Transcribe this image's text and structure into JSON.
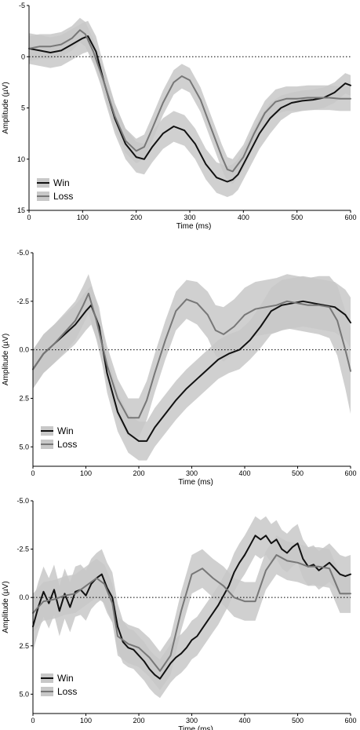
{
  "chart_data": [
    {
      "type": "line",
      "xlabel": "Time (ms)",
      "ylabel": "Amplitude (µV)",
      "xlim": [
        0,
        600
      ],
      "ylim": [
        -5,
        15
      ],
      "y_inverted": true,
      "xticks": [
        "0",
        "100",
        "200",
        "300",
        "400",
        "500",
        "600"
      ],
      "yticks": [
        "-5",
        "0",
        "5",
        "10",
        "15"
      ],
      "legend": "bottom-left",
      "series": [
        {
          "name": "Win",
          "color": "#111111",
          "x": [
            0,
            20,
            40,
            60,
            80,
            100,
            110,
            125,
            140,
            160,
            180,
            200,
            215,
            230,
            250,
            270,
            290,
            310,
            330,
            350,
            370,
            380,
            390,
            410,
            430,
            450,
            470,
            490,
            510,
            530,
            550,
            570,
            590,
            600
          ],
          "y": [
            -0.8,
            -0.6,
            -0.4,
            -0.6,
            -1.2,
            -1.8,
            -2.0,
            -0.5,
            2.5,
            6.0,
            8.5,
            9.8,
            10.0,
            8.8,
            7.5,
            6.8,
            7.2,
            8.5,
            10.5,
            11.8,
            12.2,
            12.0,
            11.5,
            9.5,
            7.5,
            6.0,
            5.0,
            4.5,
            4.3,
            4.2,
            4.0,
            3.5,
            2.6,
            2.8
          ],
          "band": [
            1.5,
            1.5,
            1.5,
            1.5,
            1.5,
            1.5,
            1.5,
            1.5,
            1.5,
            1.5,
            1.5,
            1.5,
            1.5,
            1.5,
            1.5,
            1.5,
            1.5,
            1.5,
            1.5,
            1.5,
            1.5,
            1.5,
            1.5,
            1.5,
            1.5,
            1.5,
            1.2,
            1.0,
            1.0,
            1.0,
            1.0,
            1.0,
            1.0,
            1.0
          ]
        },
        {
          "name": "Loss",
          "color": "#777777",
          "x": [
            0,
            20,
            40,
            60,
            80,
            95,
            105,
            120,
            140,
            160,
            180,
            200,
            215,
            230,
            250,
            270,
            285,
            300,
            320,
            340,
            360,
            370,
            380,
            400,
            420,
            440,
            460,
            480,
            500,
            520,
            540,
            560,
            580,
            600
          ],
          "y": [
            -0.8,
            -1.0,
            -1.0,
            -1.2,
            -1.8,
            -2.6,
            -2.2,
            -0.5,
            2.5,
            5.8,
            8.2,
            9.2,
            8.8,
            7.0,
            4.5,
            2.5,
            1.9,
            2.3,
            4.2,
            7.0,
            9.8,
            11.0,
            11.2,
            9.8,
            7.5,
            5.5,
            4.4,
            4.1,
            4.1,
            4.0,
            4.0,
            4.0,
            4.1,
            4.1
          ],
          "band": [
            1.2,
            1.2,
            1.2,
            1.2,
            1.2,
            1.2,
            1.2,
            1.2,
            1.2,
            1.2,
            1.2,
            1.2,
            1.2,
            1.2,
            1.2,
            1.2,
            1.2,
            1.2,
            1.2,
            1.2,
            1.2,
            1.2,
            1.2,
            1.2,
            1.2,
            1.2,
            1.2,
            1.2,
            1.2,
            1.2,
            1.2,
            1.2,
            1.2,
            1.2
          ]
        }
      ]
    },
    {
      "type": "line",
      "xlabel": "Time (ms)",
      "ylabel": "Amplitude (µV)",
      "xlim": [
        0,
        600
      ],
      "ylim": [
        -5,
        6
      ],
      "y_inverted": true,
      "xticks": [
        "0",
        "100",
        "200",
        "300",
        "400",
        "500",
        "600"
      ],
      "yticks": [
        "-5.0",
        "-2.5",
        "0.0",
        "2.5",
        "5.0"
      ],
      "legend": "bottom-left",
      "series": [
        {
          "name": "Win",
          "color": "#111111",
          "x": [
            0,
            20,
            40,
            60,
            80,
            100,
            110,
            125,
            140,
            160,
            180,
            200,
            215,
            230,
            250,
            270,
            290,
            310,
            330,
            350,
            370,
            390,
            410,
            430,
            450,
            470,
            490,
            510,
            530,
            550,
            570,
            590,
            600
          ],
          "y": [
            1.0,
            0.2,
            -0.3,
            -0.8,
            -1.3,
            -2.0,
            -2.3,
            -1.2,
            1.2,
            3.2,
            4.3,
            4.7,
            4.7,
            4.0,
            3.3,
            2.6,
            2.0,
            1.5,
            1.0,
            0.5,
            0.2,
            0.0,
            -0.5,
            -1.2,
            -2.0,
            -2.3,
            -2.4,
            -2.5,
            -2.4,
            -2.3,
            -2.2,
            -1.8,
            -1.4
          ],
          "band": [
            1.0,
            1.0,
            1.0,
            1.0,
            1.0,
            1.0,
            1.0,
            1.0,
            1.0,
            1.0,
            1.0,
            1.0,
            1.0,
            1.0,
            1.0,
            1.0,
            1.0,
            1.0,
            1.0,
            1.0,
            1.0,
            1.0,
            1.0,
            1.1,
            1.2,
            1.3,
            1.3,
            1.3,
            1.3,
            1.3,
            1.3,
            1.3,
            1.3
          ]
        },
        {
          "name": "Loss",
          "color": "#777777",
          "x": [
            0,
            20,
            40,
            60,
            80,
            95,
            105,
            120,
            140,
            160,
            180,
            200,
            215,
            230,
            250,
            270,
            290,
            310,
            330,
            345,
            360,
            380,
            400,
            420,
            440,
            460,
            480,
            500,
            520,
            540,
            560,
            575,
            590,
            600
          ],
          "y": [
            1.0,
            0.2,
            -0.3,
            -0.9,
            -1.5,
            -2.3,
            -2.9,
            -1.5,
            0.8,
            2.5,
            3.5,
            3.5,
            2.6,
            1.2,
            -0.5,
            -2.0,
            -2.6,
            -2.4,
            -1.8,
            -1.0,
            -0.8,
            -1.2,
            -1.8,
            -2.1,
            -2.2,
            -2.3,
            -2.5,
            -2.4,
            -2.3,
            -2.3,
            -2.2,
            -1.5,
            0.0,
            1.1
          ],
          "band": [
            1.0,
            1.0,
            1.0,
            1.0,
            1.0,
            1.0,
            1.0,
            1.0,
            1.0,
            1.0,
            1.0,
            1.0,
            1.0,
            1.0,
            1.0,
            1.0,
            1.0,
            1.1,
            1.2,
            1.3,
            1.4,
            1.4,
            1.4,
            1.4,
            1.4,
            1.4,
            1.4,
            1.4,
            1.4,
            1.5,
            1.6,
            1.8,
            2.0,
            2.2
          ]
        }
      ]
    },
    {
      "type": "line",
      "xlabel": "Time (ms)",
      "ylabel": "Amplitude (µV)",
      "xlim": [
        0,
        600
      ],
      "ylim": [
        -5,
        6
      ],
      "y_inverted": true,
      "xticks": [
        "0",
        "100",
        "200",
        "300",
        "400",
        "500",
        "600"
      ],
      "yticks": [
        "-5.0",
        "-2.5",
        "0.0",
        "2.5",
        "5.0"
      ],
      "legend": "bottom-left",
      "series": [
        {
          "name": "Win",
          "color": "#111111",
          "x": [
            0,
            10,
            20,
            30,
            40,
            50,
            60,
            70,
            80,
            90,
            100,
            110,
            120,
            130,
            140,
            150,
            160,
            170,
            180,
            190,
            200,
            210,
            220,
            230,
            240,
            250,
            260,
            270,
            280,
            290,
            300,
            310,
            320,
            330,
            340,
            350,
            360,
            370,
            380,
            390,
            400,
            410,
            420,
            430,
            440,
            450,
            460,
            470,
            480,
            490,
            500,
            510,
            520,
            530,
            540,
            550,
            560,
            570,
            580,
            590,
            600
          ],
          "y": [
            1.5,
            0.5,
            -0.3,
            0.3,
            -0.4,
            0.7,
            -0.2,
            0.5,
            -0.3,
            -0.4,
            -0.1,
            -0.7,
            -1.0,
            -1.2,
            -0.5,
            0.0,
            1.5,
            2.3,
            2.6,
            2.7,
            3.0,
            3.3,
            3.7,
            4.0,
            4.2,
            3.8,
            3.4,
            3.1,
            2.9,
            2.6,
            2.2,
            2.0,
            1.6,
            1.2,
            0.8,
            0.4,
            -0.1,
            -0.6,
            -1.3,
            -1.8,
            -2.2,
            -2.7,
            -3.2,
            -3.0,
            -3.2,
            -2.8,
            -3.0,
            -2.5,
            -2.3,
            -2.6,
            -2.8,
            -2.0,
            -1.6,
            -1.7,
            -1.4,
            -1.6,
            -1.8,
            -1.5,
            -1.2,
            -1.1,
            -1.2
          ],
          "band": [
            1.3,
            1.3,
            1.3,
            1.3,
            1.3,
            1.3,
            1.3,
            1.3,
            1.3,
            1.3,
            1.3,
            1.3,
            1.3,
            1.3,
            1.3,
            1.3,
            1.2,
            1.1,
            1.0,
            1.0,
            1.0,
            1.0,
            1.0,
            1.0,
            1.0,
            1.0,
            1.0,
            1.0,
            1.0,
            1.0,
            1.0,
            1.0,
            1.0,
            1.0,
            1.0,
            1.0,
            1.0,
            1.0,
            1.0,
            1.0,
            1.0,
            1.0,
            1.0,
            1.0,
            1.0,
            1.0,
            1.0,
            1.0,
            1.0,
            1.0,
            1.0,
            1.0,
            1.0,
            1.0,
            1.0,
            1.0,
            1.0,
            1.0,
            1.0,
            1.0,
            1.0
          ]
        },
        {
          "name": "Loss",
          "color": "#777777",
          "x": [
            0,
            20,
            40,
            60,
            80,
            100,
            120,
            135,
            150,
            160,
            180,
            200,
            220,
            240,
            260,
            280,
            300,
            320,
            340,
            360,
            380,
            400,
            420,
            440,
            460,
            480,
            500,
            520,
            540,
            560,
            580,
            600
          ],
          "y": [
            0.8,
            0.2,
            0.1,
            -0.1,
            -0.2,
            -0.6,
            -1.0,
            -0.7,
            0.3,
            2.0,
            2.4,
            2.6,
            3.1,
            3.8,
            3.0,
            0.7,
            -1.2,
            -1.5,
            -1.0,
            -0.6,
            0.0,
            0.2,
            0.2,
            -1.4,
            -2.2,
            -1.9,
            -1.8,
            -1.6,
            -1.6,
            -1.5,
            -0.2,
            -0.2
          ],
          "band": [
            1.0,
            1.0,
            1.0,
            1.0,
            1.0,
            1.0,
            1.0,
            1.0,
            1.0,
            1.0,
            1.0,
            1.0,
            1.0,
            1.0,
            1.0,
            1.0,
            1.0,
            1.0,
            1.0,
            1.0,
            1.0,
            1.0,
            1.0,
            1.0,
            1.0,
            1.0,
            1.0,
            1.0,
            1.0,
            1.0,
            1.0,
            1.0
          ]
        }
      ]
    }
  ]
}
